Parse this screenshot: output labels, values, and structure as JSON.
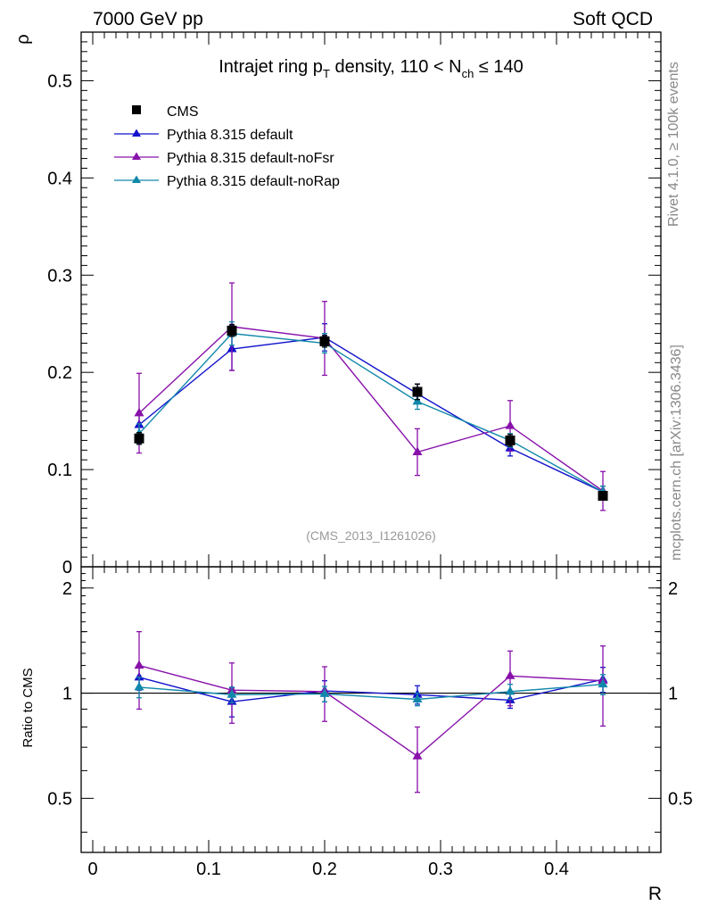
{
  "header": {
    "left": "7000 GeV pp",
    "right": "Soft QCD"
  },
  "side_labels": {
    "rivet": "Rivet 4.1.0, ≥ 100k events",
    "mcplots": "mcplots.cern.ch [arXiv:1306.3436]"
  },
  "watermark": "(CMS_2013_I1261026)",
  "colors": {
    "cms": "#000000",
    "default": "#1111cc",
    "noFsr": "#8811aa",
    "noRap": "#1188aa",
    "reference_line": "#000000"
  },
  "chart_data": [
    {
      "type": "line",
      "title_parts": {
        "a": "Intrajet ring p",
        "a_sub": "T",
        "b": " density, 110 < N",
        "b_sub": "ch",
        "c": " ≤ 140"
      },
      "xlabel": "R",
      "ylabel": "ρ",
      "xlim": [
        -0.01,
        0.49
      ],
      "ylim": [
        0,
        0.55
      ],
      "y_ticks": [
        0,
        0.1,
        0.2,
        0.3,
        0.4,
        0.5
      ],
      "y_tick_labels": [
        "0",
        "0.1",
        "0.2",
        "0.3",
        "0.4",
        "0.5"
      ],
      "x": [
        0.04,
        0.12,
        0.2,
        0.28,
        0.36,
        0.44
      ],
      "series": [
        {
          "name": "CMS",
          "key": "cms",
          "marker": "square",
          "line": false,
          "values": [
            0.132,
            0.243,
            0.232,
            0.18,
            0.13,
            0.073
          ],
          "err": [
            0.006,
            0.006,
            0.006,
            0.008,
            0.006,
            0.004
          ]
        },
        {
          "name": "Pythia 8.315 default",
          "key": "default",
          "marker": "triangle",
          "line": true,
          "values": [
            0.146,
            0.224,
            0.236,
            0.178,
            0.122,
            0.077
          ],
          "err": [
            0.012,
            0.022,
            0.014,
            0.01,
            0.008,
            0.006
          ]
        },
        {
          "name": "Pythia 8.315 default-noFsr",
          "key": "noFsr",
          "marker": "triangle",
          "line": true,
          "values": [
            0.158,
            0.247,
            0.235,
            0.118,
            0.145,
            0.078
          ],
          "err": [
            0.041,
            0.045,
            0.038,
            0.024,
            0.026,
            0.02
          ]
        },
        {
          "name": "Pythia 8.315 default-noRap",
          "key": "noRap",
          "marker": "triangle",
          "line": true,
          "values": [
            0.137,
            0.24,
            0.23,
            0.17,
            0.13,
            0.077
          ],
          "err": [
            0.01,
            0.012,
            0.01,
            0.008,
            0.007,
            0.006
          ]
        }
      ]
    },
    {
      "type": "line",
      "ylabel": "Ratio to CMS",
      "xlabel": "R",
      "xlim": [
        -0.01,
        0.49
      ],
      "ylim": [
        0.35,
        2.3
      ],
      "y_ticks": [
        0.5,
        1,
        2
      ],
      "y_tick_labels": [
        "0.5",
        "1",
        "2"
      ],
      "x_ticks": [
        0,
        0.1,
        0.2,
        0.3,
        0.4
      ],
      "x_tick_labels": [
        "0",
        "0.1",
        "0.2",
        "0.3",
        "0.4"
      ],
      "x": [
        0.04,
        0.12,
        0.2,
        0.28,
        0.36,
        0.44
      ],
      "reference": 1,
      "series": [
        {
          "name": "Pythia 8.315 default",
          "key": "default",
          "values": [
            1.11,
            0.945,
            1.015,
            0.99,
            0.955,
            1.095
          ],
          "err": [
            0.09,
            0.09,
            0.07,
            0.06,
            0.05,
            0.09
          ]
        },
        {
          "name": "Pythia 8.315 default-noFsr",
          "key": "noFsr",
          "values": [
            1.2,
            1.02,
            1.01,
            0.66,
            1.12,
            1.085
          ],
          "err": [
            0.3,
            0.2,
            0.18,
            0.14,
            0.2,
            0.28
          ]
        },
        {
          "name": "Pythia 8.315 default-noRap",
          "key": "noRap",
          "values": [
            1.04,
            0.99,
            0.995,
            0.96,
            1.01,
            1.06
          ],
          "err": [
            0.07,
            0.05,
            0.05,
            0.04,
            0.05,
            0.07
          ]
        }
      ]
    }
  ]
}
